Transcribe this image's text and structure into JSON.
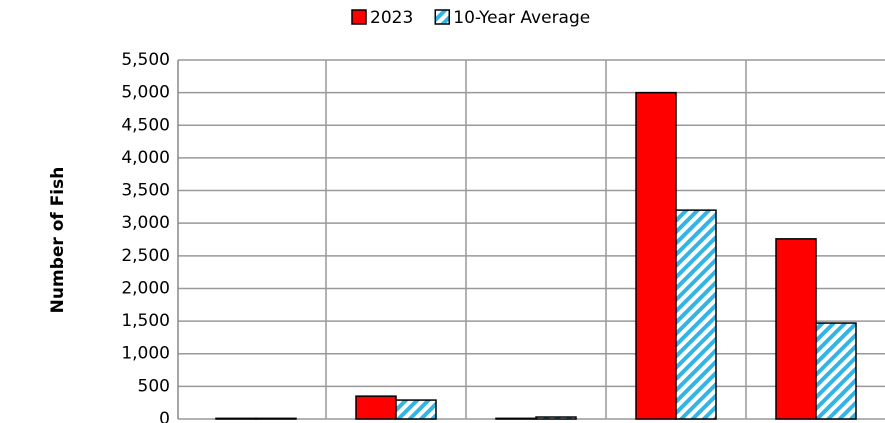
{
  "chart_data": {
    "type": "bar",
    "legend": "top",
    "y_label": "Number of Fish",
    "categories": [
      null,
      null,
      null,
      null,
      null
    ],
    "series": [
      {
        "name": "2023",
        "color": "#ff0000",
        "values": [
          10,
          350,
          10,
          5000,
          2760
        ]
      },
      {
        "name": "10-Year Average",
        "color": "#33b4e6",
        "pattern": "hatch",
        "values": [
          10,
          290,
          30,
          3200,
          1470
        ]
      }
    ],
    "ylim": [
      0,
      5500
    ],
    "yticks": [
      0,
      500,
      {
        "value": 1000,
        "label": "1,000"
      },
      {
        "value": 1500,
        "label": "1,500"
      },
      {
        "value": 2000,
        "label": "2,000"
      },
      {
        "value": 2500,
        "label": "2,500"
      },
      {
        "value": 3000,
        "label": "3,000"
      },
      {
        "value": 3500,
        "label": "3,500"
      },
      {
        "value": 4000,
        "label": "4,000"
      },
      {
        "value": 4500,
        "label": "4,500"
      },
      {
        "value": 5000,
        "label": "5,000"
      },
      {
        "value": 5500,
        "label": "5,500"
      }
    ],
    "grid": true
  }
}
